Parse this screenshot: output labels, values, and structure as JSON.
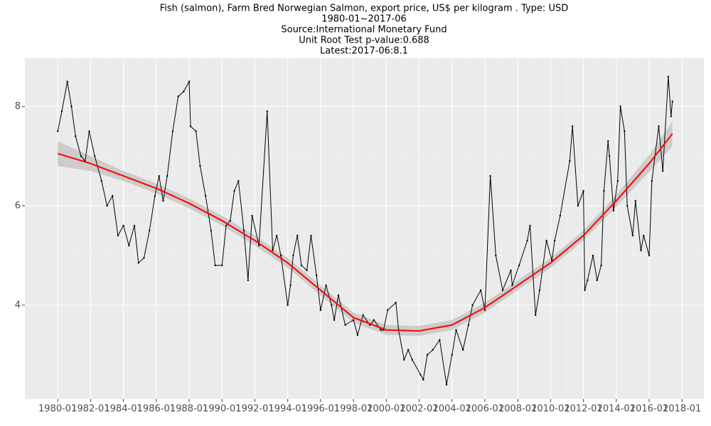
{
  "chart_data": {
    "type": "line",
    "title": "Fish (salmon), Farm Bred Norwegian Salmon, export price, US$ per kilogram . Type: USD",
    "subtitle": "1980-01~2017-06",
    "source": "Source:International Monetary Fund",
    "annotations": [
      "Unit Root Test p-value:0.688",
      "Latest:2017-06:8.1"
    ],
    "x": [
      "1980-01",
      "1980-04",
      "1980-08",
      "1980-11",
      "1981-02",
      "1981-06",
      "1981-09",
      "1981-12",
      "1982-04",
      "1982-09",
      "1983-01",
      "1983-05",
      "1983-09",
      "1984-01",
      "1984-05",
      "1984-09",
      "1984-12",
      "1985-04",
      "1985-08",
      "1985-12",
      "1986-03",
      "1986-06",
      "1986-09",
      "1987-01",
      "1987-05",
      "1987-09",
      "1988-01",
      "1988-02",
      "1988-06",
      "1988-09",
      "1989-01",
      "1989-05",
      "1989-08",
      "1990-01",
      "1990-04",
      "1990-07",
      "1990-10",
      "1991-01",
      "1991-05",
      "1991-08",
      "1991-11",
      "1992-04",
      "1992-10",
      "1993-02",
      "1993-05",
      "1993-08",
      "1994-01",
      "1994-03",
      "1994-05",
      "1994-08",
      "1994-11",
      "1995-03",
      "1995-06",
      "1995-10",
      "1996-01",
      "1996-05",
      "1996-09",
      "1996-11",
      "1997-02",
      "1997-07",
      "1998-01",
      "1998-04",
      "1998-08",
      "1999-01",
      "1999-04",
      "1999-09",
      "1999-11",
      "2000-02",
      "2000-08",
      "2000-10",
      "2001-02",
      "2001-05",
      "2001-08",
      "2002-02",
      "2002-04",
      "2002-07",
      "2002-11",
      "2003-04",
      "2003-09",
      "2004-01",
      "2004-04",
      "2004-09",
      "2005-01",
      "2005-04",
      "2005-10",
      "2006-01",
      "2006-05",
      "2006-09",
      "2007-02",
      "2007-08",
      "2007-09",
      "2008-02",
      "2008-08",
      "2008-10",
      "2009-02",
      "2009-05",
      "2009-10",
      "2010-02",
      "2010-04",
      "2010-08",
      "2011-03",
      "2011-05",
      "2011-09",
      "2012-01",
      "2012-02",
      "2012-04",
      "2012-08",
      "2012-11",
      "2013-02",
      "2013-04",
      "2013-07",
      "2013-08",
      "2013-11",
      "2014-02",
      "2014-04",
      "2014-07",
      "2014-09",
      "2015-01",
      "2015-03",
      "2015-07",
      "2015-09",
      "2016-01",
      "2016-03",
      "2016-08",
      "2016-11",
      "2017-03",
      "2017-05",
      "2017-06"
    ],
    "series": [
      {
        "color": "#000000",
        "values": [
          7.5,
          7.9,
          8.5,
          8.0,
          7.4,
          7.0,
          6.9,
          7.5,
          7.0,
          6.5,
          6.0,
          6.2,
          5.4,
          5.6,
          5.2,
          5.6,
          4.85,
          4.95,
          5.5,
          6.2,
          6.6,
          6.1,
          6.6,
          7.5,
          8.2,
          8.3,
          8.5,
          7.6,
          7.5,
          6.8,
          6.2,
          5.5,
          4.8,
          4.8,
          5.6,
          5.7,
          6.3,
          6.5,
          5.5,
          4.5,
          5.8,
          5.2,
          7.9,
          5.1,
          5.4,
          5.0,
          4.0,
          4.4,
          5.0,
          5.4,
          4.8,
          4.7,
          5.4,
          4.6,
          3.9,
          4.4,
          4.0,
          3.7,
          4.2,
          3.6,
          3.7,
          3.4,
          3.8,
          3.6,
          3.7,
          3.5,
          3.5,
          3.9,
          4.05,
          3.5,
          2.9,
          3.1,
          2.9,
          2.6,
          2.5,
          3.0,
          3.1,
          3.3,
          2.4,
          3.0,
          3.5,
          3.1,
          3.6,
          4.0,
          4.3,
          3.9,
          6.6,
          5.0,
          4.3,
          4.7,
          4.4,
          4.8,
          5.3,
          5.6,
          3.8,
          4.3,
          5.3,
          4.9,
          5.3,
          5.8,
          6.9,
          7.6,
          6.0,
          6.3,
          4.3,
          4.5,
          5.0,
          4.5,
          4.8,
          6.3,
          7.3,
          7.0,
          5.9,
          6.5,
          8.0,
          7.5,
          6.0,
          5.4,
          6.1,
          5.1,
          5.4,
          5.0,
          6.5,
          7.6,
          6.7,
          8.6,
          7.8,
          8.1
        ]
      }
    ],
    "trend": {
      "color": "#ff0000",
      "band_color": "#cccccc",
      "x": [
        "1980-01",
        "1982-01",
        "1984-01",
        "1986-01",
        "1988-01",
        "1990-01",
        "1992-01",
        "1994-01",
        "1996-01",
        "1998-01",
        "2000-01",
        "2002-01",
        "2004-01",
        "2006-01",
        "2008-01",
        "2010-01",
        "2012-01",
        "2014-01",
        "2016-01",
        "2017-06"
      ],
      "values": [
        7.05,
        6.85,
        6.6,
        6.35,
        6.05,
        5.7,
        5.3,
        4.85,
        4.3,
        3.75,
        3.5,
        3.48,
        3.6,
        3.95,
        4.4,
        4.85,
        5.4,
        6.1,
        6.85,
        7.45
      ],
      "lower": [
        6.8,
        6.7,
        6.5,
        6.25,
        5.95,
        5.6,
        5.2,
        4.75,
        4.2,
        3.65,
        3.4,
        3.38,
        3.5,
        3.85,
        4.3,
        4.75,
        5.3,
        5.98,
        6.68,
        7.2
      ],
      "upper": [
        7.3,
        7.0,
        6.7,
        6.45,
        6.15,
        5.8,
        5.4,
        4.95,
        4.4,
        3.85,
        3.6,
        3.58,
        3.7,
        4.05,
        4.5,
        4.95,
        5.5,
        6.22,
        7.02,
        7.7
      ]
    },
    "xlim": [
      "1978-01",
      "2019-05"
    ],
    "xticks": [
      "1980-01",
      "1982-01",
      "1984-01",
      "1986-01",
      "1988-01",
      "1990-01",
      "1992-01",
      "1994-01",
      "1996-01",
      "1998-01",
      "2000-01",
      "2002-01",
      "2004-01",
      "2006-01",
      "2008-01",
      "2010-01",
      "2012-01",
      "2014-01",
      "2016-01",
      "2018-01"
    ],
    "ylim": [
      2.11,
      8.97
    ],
    "yticks": [
      4,
      6,
      8
    ],
    "grid": true
  }
}
